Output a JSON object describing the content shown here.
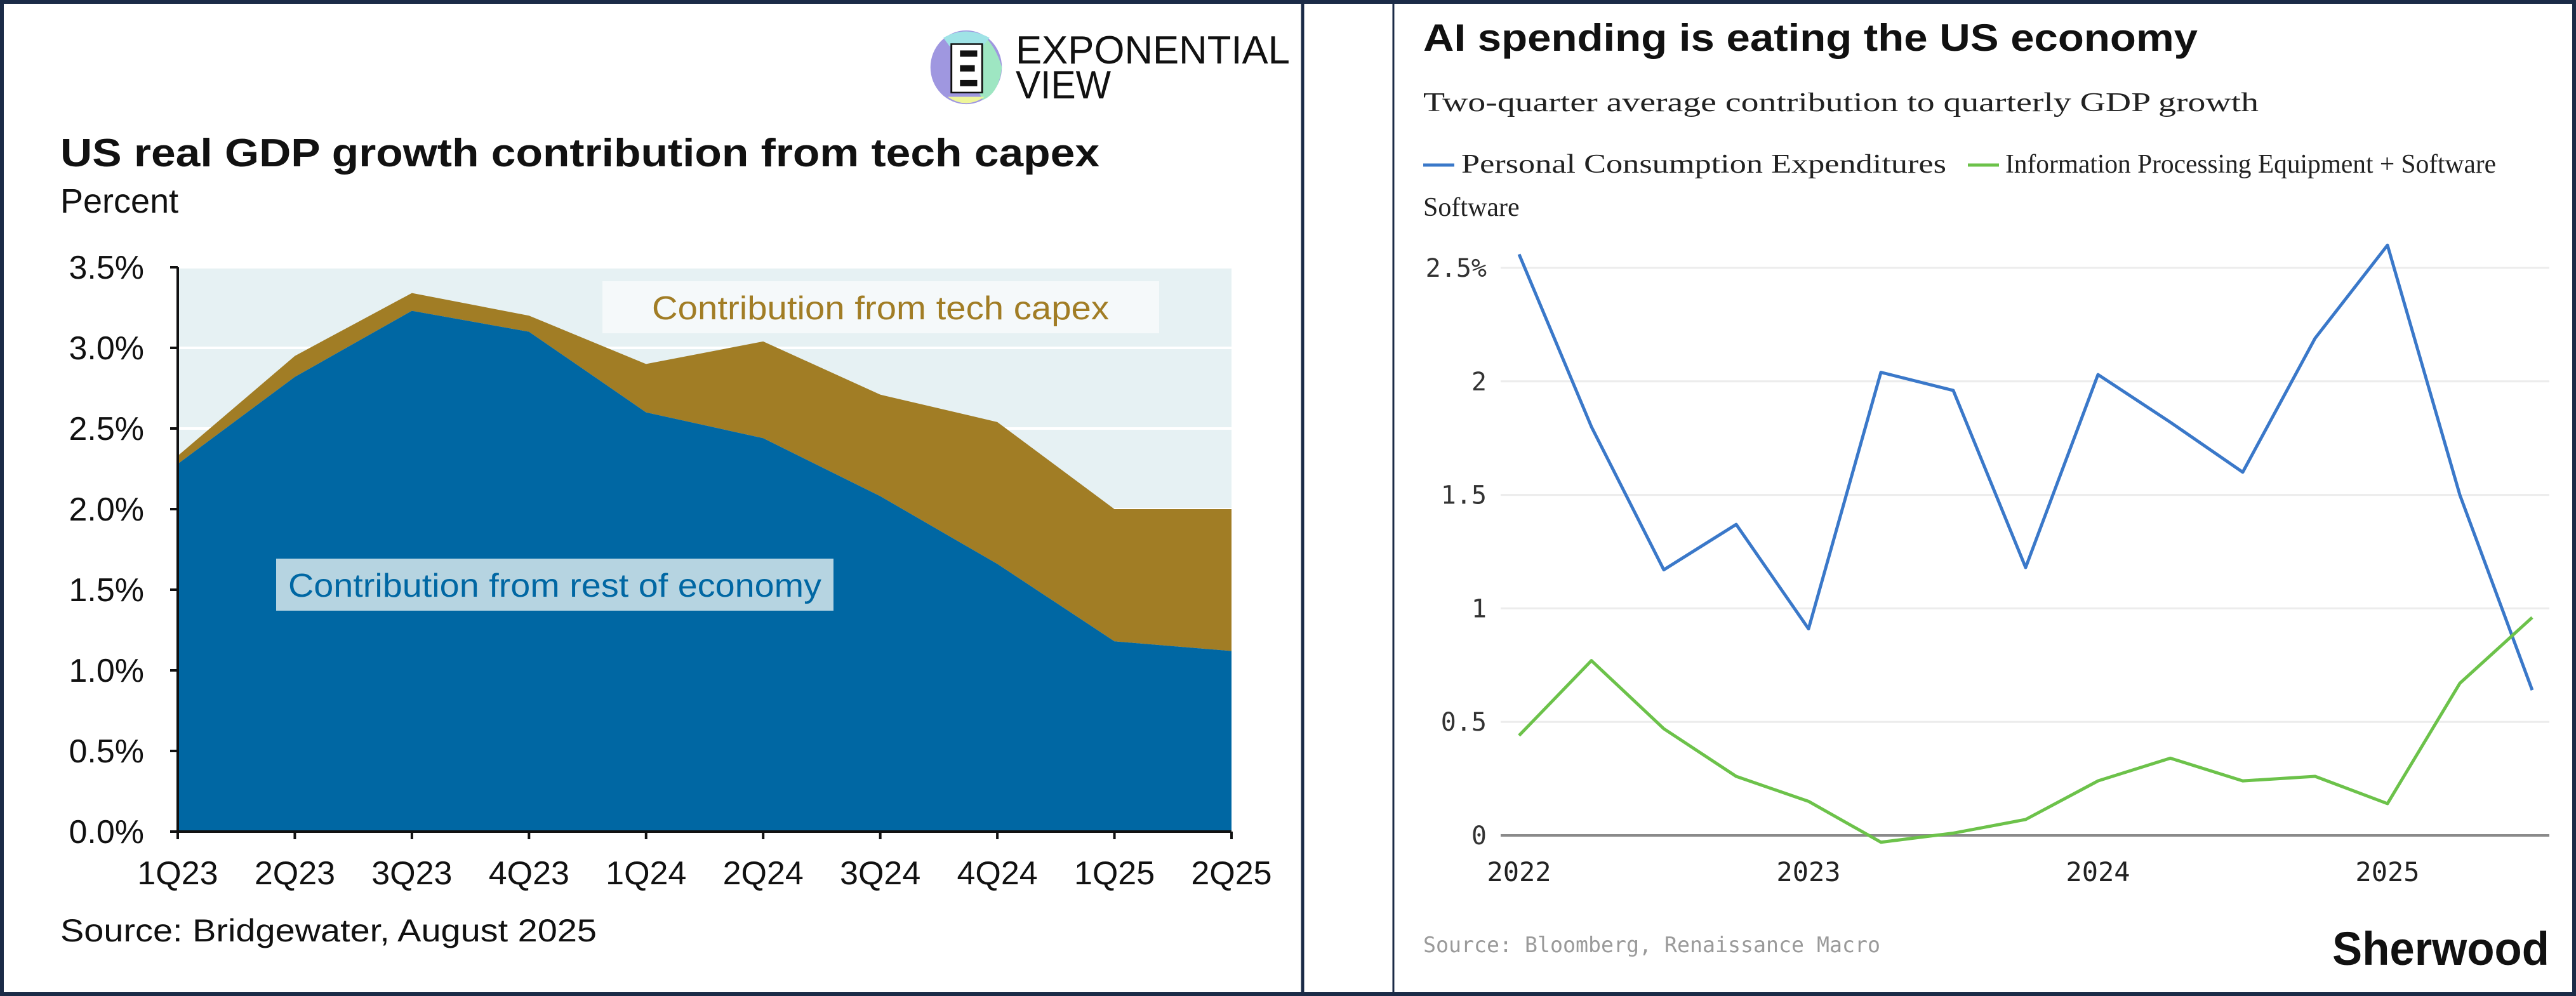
{
  "left_panel": {
    "logo": {
      "line1": "EXPONENTIAL",
      "line2": "VIEW"
    },
    "source": "Source: Bridgewater, August 2025"
  },
  "right_panel": {
    "brand": "Sherwood",
    "source": "Source: Bloomberg, Renaissance Macro"
  },
  "colors": {
    "rest_of_economy": "#0067a3",
    "tech_capex": "#a17d25",
    "plot_background": "#e6f1f3",
    "pce_line": "#3a78c9",
    "ipe_line": "#6cc24a",
    "border": "#1b2b47"
  },
  "chart_data": [
    {
      "type": "area",
      "stacked": true,
      "title": "US real GDP growth contribution from tech capex",
      "subtitle": "Percent",
      "categories": [
        "1Q23",
        "2Q23",
        "3Q23",
        "4Q23",
        "1Q24",
        "2Q24",
        "3Q24",
        "4Q24",
        "1Q25",
        "2Q25"
      ],
      "series": [
        {
          "name": "Contribution from rest of economy",
          "values": [
            2.28,
            2.82,
            3.23,
            3.1,
            2.6,
            2.44,
            2.08,
            1.66,
            1.18,
            1.12
          ]
        },
        {
          "name": "Contribution from tech capex",
          "values": [
            0.05,
            0.13,
            0.11,
            0.1,
            0.3,
            0.6,
            0.63,
            0.88,
            0.82,
            0.88
          ]
        }
      ],
      "ylim": [
        0,
        3.5
      ],
      "yticks": [
        "0.0%",
        "0.5%",
        "1.0%",
        "1.5%",
        "2.0%",
        "2.5%",
        "3.0%",
        "3.5%"
      ],
      "grid": true,
      "legend": "inline labels"
    },
    {
      "type": "line",
      "title": "AI spending is eating the US economy",
      "subtitle": "Two-quarter average contribution to quarterly GDP growth",
      "x": [
        "2022Q1",
        "2022Q2",
        "2022Q3",
        "2022Q4",
        "2023Q1",
        "2023Q2",
        "2023Q3",
        "2023Q4",
        "2024Q1",
        "2024Q2",
        "2024Q3",
        "2024Q4",
        "2025Q1",
        "2025Q2",
        "2025Q3"
      ],
      "xticks": [
        "2022",
        "2023",
        "2024",
        "2025"
      ],
      "series": [
        {
          "name": "Personal Consumption Expenditures",
          "values": [
            2.56,
            1.8,
            1.17,
            1.37,
            0.91,
            2.04,
            1.96,
            1.18,
            2.03,
            1.82,
            1.6,
            2.19,
            2.6,
            1.5,
            0.64
          ]
        },
        {
          "name": "Information Processing Equipment + Software",
          "values": [
            0.44,
            0.77,
            0.47,
            0.26,
            0.15,
            -0.03,
            0.01,
            0.07,
            0.24,
            0.34,
            0.24,
            0.26,
            0.14,
            0.67,
            0.96
          ]
        }
      ],
      "legend_line2": "Software",
      "ylim": [
        -0.05,
        2.6
      ],
      "yticks": [
        "0",
        "0.5",
        "1",
        "1.5",
        "2",
        "2.5%"
      ],
      "grid": true,
      "legend": "top"
    }
  ]
}
